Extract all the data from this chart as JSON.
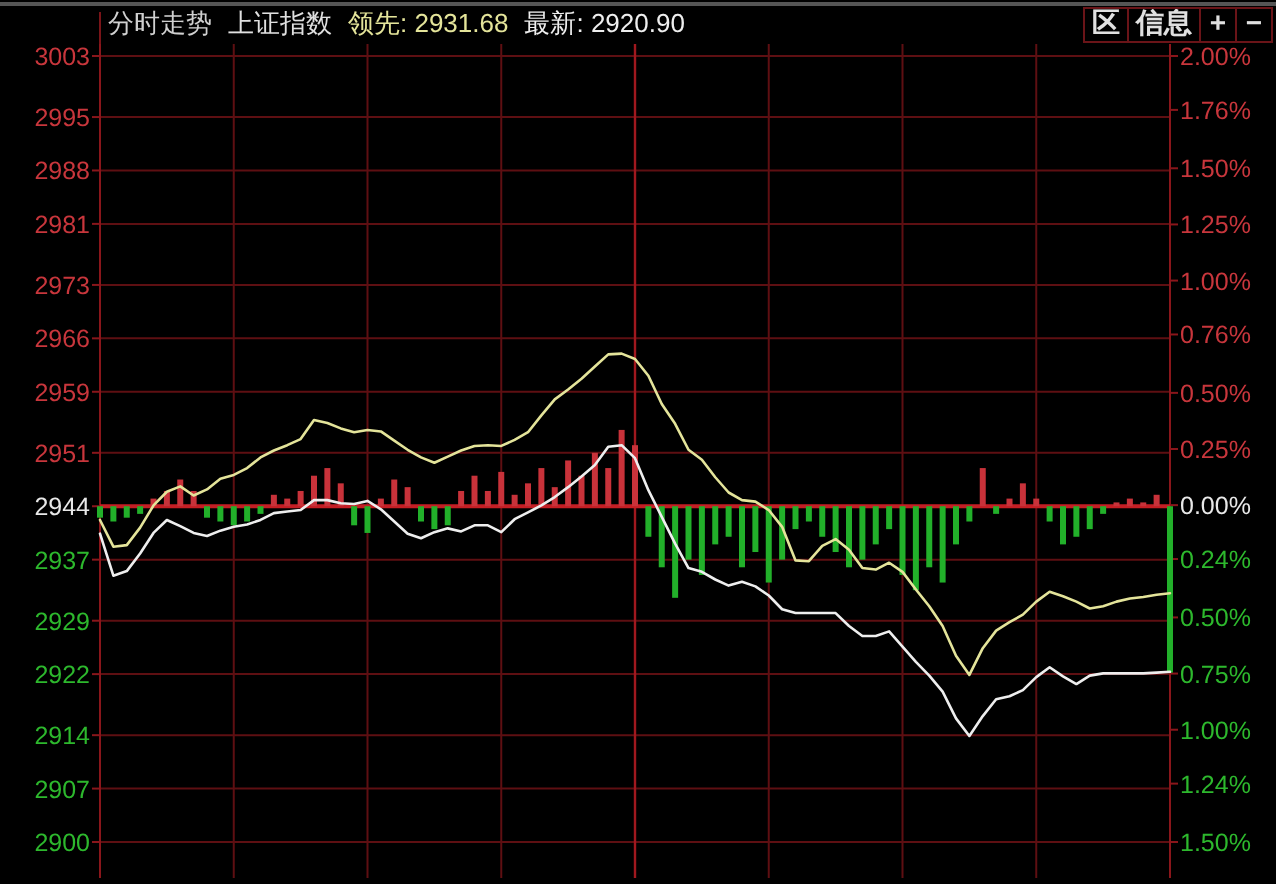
{
  "chart_data": {
    "type": "line",
    "title": "分时走势",
    "subtitle": "上证指数",
    "categories": [
      null,
      null,
      null,
      null,
      null,
      null,
      null,
      null,
      null,
      null,
      null,
      null,
      null,
      null,
      null,
      null,
      null,
      null,
      null,
      null,
      null,
      null,
      null,
      null,
      null,
      null,
      null,
      null,
      null,
      null,
      null,
      null,
      null,
      null,
      null,
      null,
      null,
      null,
      null,
      null,
      null,
      null,
      null,
      null,
      null,
      null,
      null,
      null,
      null,
      null,
      null,
      null,
      null,
      null,
      null,
      null,
      null,
      null,
      null,
      null,
      null,
      null,
      null,
      null,
      null,
      null,
      null,
      null,
      null,
      null,
      null,
      null,
      null,
      null,
      null,
      null,
      null,
      null,
      null,
      null,
      null
    ],
    "ylim": [
      2900,
      3003
    ],
    "yticks": [
      2900,
      2907,
      2914,
      2922,
      2929,
      2937,
      2944,
      2951,
      2959,
      2966,
      2973,
      2981,
      2988,
      2995,
      3003
    ],
    "y2lim": [
      -1.5,
      2.0
    ],
    "y2ticks": [
      {
        "value": -1.5,
        "label": "1.50%"
      },
      {
        "value": -1.24,
        "label": "1.24%"
      },
      {
        "value": -1.0,
        "label": "1.00%"
      },
      {
        "value": -0.75,
        "label": "0.75%"
      },
      {
        "value": -0.5,
        "label": "0.50%"
      },
      {
        "value": -0.24,
        "label": "0.24%"
      },
      {
        "value": 0,
        "label": "0.00%"
      },
      {
        "value": 0.25,
        "label": "0.25%"
      },
      {
        "value": 0.5,
        "label": "0.50%"
      },
      {
        "value": 0.76,
        "label": "0.76%"
      },
      {
        "value": 1.0,
        "label": "1.00%"
      },
      {
        "value": 1.25,
        "label": "1.25%"
      },
      {
        "value": 1.5,
        "label": "1.50%"
      },
      {
        "value": 1.76,
        "label": "1.76%"
      },
      {
        "value": 2.0,
        "label": "2.00%"
      }
    ],
    "grid": true,
    "ref_lines": [
      {
        "axis": "y",
        "value": 2944,
        "color": "#c41e24"
      }
    ],
    "annotations": [
      "区",
      "信息",
      "+",
      "−"
    ],
    "series": [
      {
        "type": "bar",
        "values": [
          -1.5,
          -2,
          -1.5,
          -1,
          1,
          2,
          3.5,
          2,
          -1.5,
          -2,
          -2.5,
          -2,
          -1,
          1.5,
          1,
          2,
          4,
          5,
          3,
          -2.5,
          -3.5,
          1,
          3.5,
          2.5,
          -2,
          -3,
          -2.5,
          2,
          4,
          2,
          4.5,
          1.5,
          3,
          5,
          2.5,
          6,
          4,
          7,
          5,
          10,
          8,
          -4,
          -8,
          -12,
          -7,
          -9,
          -5,
          -4,
          -8,
          -6,
          -10,
          -7,
          -3,
          -2,
          -4,
          -6,
          -8,
          -7,
          -5,
          -3,
          -9,
          -11,
          -8,
          -10,
          -5,
          -2,
          5,
          -1,
          1,
          3,
          1,
          -2,
          -5,
          -4,
          -3,
          -1,
          0.5,
          1,
          0.5,
          1.5,
          -21.8
        ],
        "colors": [
          "#22b02a",
          "#22b02a",
          "#22b02a",
          "#22b02a",
          "#c8323a",
          "#c8323a",
          "#c8323a",
          "#c8323a",
          "#22b02a",
          "#22b02a",
          "#22b02a",
          "#22b02a",
          "#22b02a",
          "#c8323a",
          "#c8323a",
          "#c8323a",
          "#c8323a",
          "#c8323a",
          "#c8323a",
          "#22b02a",
          "#22b02a",
          "#c8323a",
          "#c8323a",
          "#c8323a",
          "#22b02a",
          "#22b02a",
          "#22b02a",
          "#c8323a",
          "#c8323a",
          "#c8323a",
          "#c8323a",
          "#c8323a",
          "#c8323a",
          "#c8323a",
          "#c8323a",
          "#c8323a",
          "#c8323a",
          "#c8323a",
          "#c8323a",
          "#c8323a",
          "#c8323a",
          "#22b02a",
          "#22b02a",
          "#22b02a",
          "#22b02a",
          "#22b02a",
          "#22b02a",
          "#22b02a",
          "#22b02a",
          "#22b02a",
          "#22b02a",
          "#22b02a",
          "#22b02a",
          "#22b02a",
          "#22b02a",
          "#22b02a",
          "#22b02a",
          "#22b02a",
          "#22b02a",
          "#22b02a",
          "#22b02a",
          "#22b02a",
          "#22b02a",
          "#22b02a",
          "#22b02a",
          "#22b02a",
          "#c8323a",
          "#22b02a",
          "#c8323a",
          "#c8323a",
          "#c8323a",
          "#22b02a",
          "#22b02a",
          "#22b02a",
          "#22b02a",
          "#22b02a",
          "#c8323a",
          "#c8323a",
          "#c8323a",
          "#c8323a",
          "#22b02a"
        ],
        "base": [
          2944,
          2944,
          2944,
          2944,
          2944,
          2944,
          2944,
          2944,
          2944,
          2944,
          2944,
          2944,
          2944,
          2944,
          2944,
          2944,
          2944,
          2944,
          2944,
          2944,
          2944,
          2944,
          2944,
          2944,
          2944,
          2944,
          2944,
          2944,
          2944,
          2944,
          2944,
          2944,
          2944,
          2944,
          2944,
          2944,
          2944,
          2944,
          2944,
          2944,
          2944,
          2944,
          2944,
          2944,
          2944,
          2944,
          2944,
          2944,
          2944,
          2944,
          2944,
          2944,
          2944,
          2944,
          2944,
          2944,
          2944,
          2944,
          2944,
          2944,
          2944,
          2944,
          2944,
          2944,
          2944,
          2944,
          2944,
          2944,
          2944,
          2944,
          2944,
          2944,
          2944,
          2944,
          2944,
          2944,
          2944,
          2944,
          2944,
          2944,
          2944
        ]
      },
      {
        "name": "领先: 2931.68",
        "color": "#e4e49a",
        "values": [
          2942.2,
          2938.7,
          2938.9,
          2941.2,
          2944.1,
          2945.9,
          2946.6,
          2945.4,
          2946.2,
          2947.6,
          2948.1,
          2949.0,
          2950.4,
          2951.3,
          2952.0,
          2952.8,
          2955.3,
          2954.9,
          2954.2,
          2953.7,
          2954.0,
          2953.8,
          2952.6,
          2951.4,
          2950.4,
          2949.7,
          2950.5,
          2951.3,
          2951.9,
          2952.0,
          2951.9,
          2952.7,
          2953.7,
          2955.9,
          2958.0,
          2959.3,
          2960.7,
          2962.3,
          2963.9,
          2964.0,
          2963.3,
          2961.1,
          2957.4,
          2954.8,
          2951.4,
          2950.1,
          2947.8,
          2945.8,
          2944.8,
          2944.6,
          2943.5,
          2941.3,
          2936.9,
          2936.8,
          2938.8,
          2939.7,
          2938.3,
          2935.9,
          2935.7,
          2936.6,
          2935.4,
          2933.1,
          2930.9,
          2928.3,
          2924.4,
          2921.9,
          2925.4,
          2927.7,
          2928.8,
          2929.8,
          2931.5,
          2932.8,
          2932.2,
          2931.5,
          2930.6,
          2930.9,
          2931.5,
          2931.9,
          2932.1,
          2932.4,
          2932.6
        ]
      },
      {
        "name": "最新: 2920.90",
        "color": "#eeeeee",
        "values": [
          2940.4,
          2934.9,
          2935.5,
          2937.8,
          2940.5,
          2942.2,
          2941.4,
          2940.5,
          2940.1,
          2940.8,
          2941.3,
          2941.6,
          2942.2,
          2943.1,
          2943.3,
          2943.5,
          2944.8,
          2944.8,
          2944.4,
          2944.3,
          2944.7,
          2943.6,
          2942.0,
          2940.4,
          2939.8,
          2940.6,
          2941.1,
          2940.7,
          2941.5,
          2941.5,
          2940.6,
          2942.3,
          2943.2,
          2944.1,
          2945.2,
          2946.5,
          2947.9,
          2949.4,
          2951.8,
          2952.0,
          2950.3,
          2946.1,
          2942.6,
          2939.1,
          2935.9,
          2935.4,
          2934.4,
          2933.6,
          2934.1,
          2933.5,
          2932.3,
          2930.5,
          2930,
          2930,
          2930,
          2930,
          2928.3,
          2927.0,
          2927.0,
          2927.6,
          2925.6,
          2923.6,
          2921.8,
          2919.7,
          2916.2,
          2913.9,
          2916.5,
          2918.7,
          2919.1,
          2919.9,
          2921.6,
          2922.9,
          2921.7,
          2920.7,
          2921.8,
          2922.1,
          2922.1,
          2922.1,
          2922.1,
          2922.2,
          2922.3
        ]
      }
    ]
  }
}
